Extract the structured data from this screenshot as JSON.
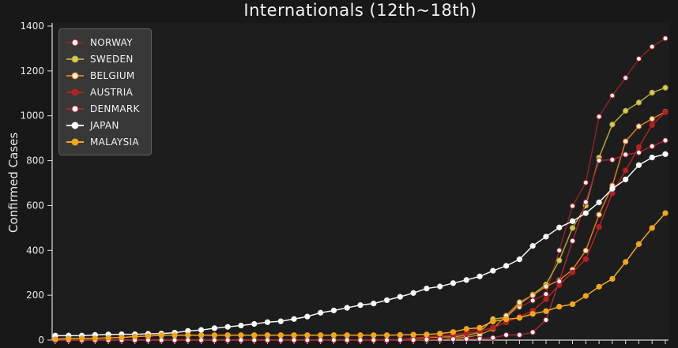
{
  "chart_data": {
    "type": "line",
    "title": "Internationals (12th~18th)",
    "ylabel": "Confirmed Cases",
    "xlabel": "",
    "ylim": [
      0,
      1400
    ],
    "yticks": [
      0,
      200,
      400,
      600,
      800,
      1000,
      1200,
      1400
    ],
    "x_tick_labels_visible": false,
    "grid": false,
    "legend_position": "upper-left",
    "figure_bg": "#181818",
    "plot_bg": "#1d1d1d",
    "text_color": "#eaeaea",
    "spine_color": "#dcdcdc",
    "series": [
      {
        "name": "NORWAY",
        "color": "#8b2323",
        "marker_face": "#f5f0f0",
        "values": [
          0,
          0,
          0,
          0,
          0,
          0,
          0,
          0,
          0,
          0,
          0,
          0,
          0,
          0,
          0,
          0,
          0,
          0,
          0,
          0,
          0,
          0,
          0,
          0,
          0,
          1,
          1,
          6,
          15,
          19,
          25,
          32,
          56,
          87,
          108,
          147,
          176,
          205,
          400,
          598,
          702,
          996,
          1090,
          1169,
          1254,
          1308,
          1345
        ]
      },
      {
        "name": "SWEDEN",
        "color": "#b3a633",
        "marker_face": "#d6c95e",
        "values": [
          1,
          1,
          1,
          1,
          1,
          1,
          1,
          1,
          1,
          1,
          1,
          1,
          1,
          1,
          1,
          1,
          1,
          1,
          1,
          1,
          1,
          1,
          1,
          1,
          1,
          1,
          2,
          7,
          12,
          14,
          15,
          21,
          35,
          94,
          101,
          161,
          203,
          248,
          355,
          500,
          599,
          814,
          961,
          1022,
          1059,
          1103,
          1125
        ]
      },
      {
        "name": "BELGIUM",
        "color": "#e07820",
        "marker_face": "#f9ecd8",
        "values": [
          0,
          0,
          0,
          1,
          1,
          1,
          1,
          1,
          1,
          1,
          1,
          1,
          1,
          1,
          1,
          1,
          1,
          1,
          1,
          1,
          1,
          1,
          1,
          1,
          1,
          1,
          1,
          1,
          1,
          2,
          8,
          13,
          23,
          50,
          109,
          169,
          200,
          239,
          267,
          314,
          399,
          559,
          689,
          886,
          953,
          986,
          1018
        ]
      },
      {
        "name": "AUSTRIA",
        "color": "#b22222",
        "marker_face": "#b22222",
        "values": [
          0,
          0,
          0,
          0,
          0,
          0,
          0,
          0,
          0,
          0,
          0,
          0,
          0,
          0,
          0,
          0,
          0,
          0,
          0,
          0,
          0,
          0,
          0,
          0,
          2,
          2,
          3,
          9,
          14,
          18,
          21,
          29,
          41,
          55,
          79,
          104,
          131,
          182,
          246,
          302,
          361,
          504,
          655,
          756,
          860,
          959,
          1016
        ]
      },
      {
        "name": "DENMARK",
        "color": "#a32638",
        "marker_face": "#ffffff",
        "values": [
          0,
          0,
          0,
          0,
          0,
          0,
          0,
          0,
          0,
          0,
          0,
          0,
          0,
          0,
          0,
          0,
          0,
          0,
          0,
          0,
          0,
          0,
          0,
          0,
          0,
          0,
          1,
          1,
          3,
          4,
          4,
          5,
          6,
          10,
          23,
          23,
          35,
          90,
          262,
          442,
          615,
          801,
          804,
          827,
          836,
          864,
          890
        ]
      },
      {
        "name": "JAPAN",
        "color": "#f5f5f5",
        "marker_face": "#ffffff",
        "values": [
          20,
          20,
          20,
          23,
          25,
          26,
          26,
          28,
          29,
          33,
          41,
          45,
          53,
          59,
          65,
          72,
          80,
          84,
          94,
          105,
          122,
          132,
          144,
          156,
          163,
          178,
          193,
          210,
          230,
          239,
          254,
          268,
          284,
          309,
          331,
          360,
          420,
          461,
          502,
          530,
          566,
          614,
          675,
          716,
          780,
          814,
          829
        ]
      },
      {
        "name": "MALAYSIA",
        "color": "#f2a51f",
        "marker_face": "#f2a51f",
        "values": [
          4,
          7,
          8,
          8,
          10,
          12,
          16,
          18,
          22,
          22,
          22,
          22,
          22,
          22,
          22,
          22,
          22,
          22,
          22,
          22,
          22,
          22,
          22,
          22,
          22,
          22,
          23,
          24,
          25,
          29,
          36,
          50,
          55,
          83,
          93,
          99,
          117,
          129,
          149,
          160,
          197,
          238,
          273,
          348,
          428,
          500,
          566
        ]
      }
    ]
  }
}
